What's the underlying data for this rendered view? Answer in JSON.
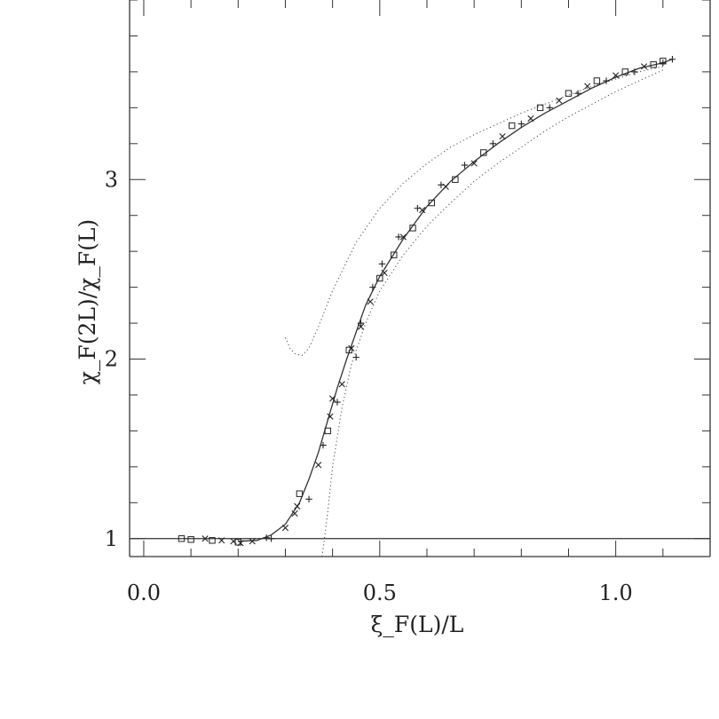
{
  "chart_data": {
    "type": "scatter",
    "title": "",
    "xlabel": "ξ_F(L)/L",
    "ylabel": "χ_F(2L)/χ_F(L)",
    "xlim": [
      -0.03,
      1.2
    ],
    "ylim": [
      0.9,
      4.0
    ],
    "x_ticks": [
      {
        "value": 0.0,
        "label": "0.0"
      },
      {
        "value": 0.5,
        "label": "0.5"
      },
      {
        "value": 1.0,
        "label": "1.0"
      }
    ],
    "y_ticks": [
      {
        "value": 1,
        "label": "1"
      },
      {
        "value": 2,
        "label": "2"
      },
      {
        "value": 3,
        "label": "3"
      }
    ],
    "x_minor_step": 0.1,
    "y_minor_step": 0.2,
    "reference_line": {
      "y": 1.0
    },
    "series": [
      {
        "marker": "square",
        "points": [
          [
            0.08,
            1.0
          ],
          [
            0.1,
            0.995
          ],
          [
            0.145,
            0.99
          ],
          [
            0.2,
            0.98
          ],
          [
            0.33,
            1.25
          ],
          [
            0.39,
            1.6
          ],
          [
            0.435,
            2.05
          ],
          [
            0.5,
            2.45
          ],
          [
            0.53,
            2.58
          ],
          [
            0.57,
            2.73
          ],
          [
            0.61,
            2.87
          ],
          [
            0.66,
            3.0
          ],
          [
            0.72,
            3.15
          ],
          [
            0.78,
            3.3
          ],
          [
            0.84,
            3.4
          ],
          [
            0.9,
            3.48
          ],
          [
            0.96,
            3.55
          ],
          [
            1.02,
            3.6
          ],
          [
            1.08,
            3.64
          ],
          [
            1.1,
            3.66
          ]
        ]
      },
      {
        "marker": "cross",
        "points": [
          [
            0.13,
            1.0
          ],
          [
            0.165,
            0.99
          ],
          [
            0.19,
            0.985
          ],
          [
            0.205,
            0.975
          ],
          [
            0.23,
            0.985
          ],
          [
            0.3,
            1.06
          ],
          [
            0.32,
            1.14
          ],
          [
            0.325,
            1.18
          ],
          [
            0.37,
            1.41
          ],
          [
            0.395,
            1.68
          ],
          [
            0.4,
            1.78
          ],
          [
            0.42,
            1.86
          ],
          [
            0.44,
            2.06
          ],
          [
            0.46,
            2.18
          ],
          [
            0.48,
            2.32
          ],
          [
            0.51,
            2.48
          ],
          [
            0.55,
            2.68
          ],
          [
            0.59,
            2.83
          ],
          [
            0.64,
            2.96
          ],
          [
            0.7,
            3.09
          ],
          [
            0.76,
            3.24
          ],
          [
            0.82,
            3.34
          ],
          [
            0.88,
            3.44
          ],
          [
            0.94,
            3.52
          ],
          [
            1.0,
            3.58
          ],
          [
            1.06,
            3.63
          ]
        ]
      },
      {
        "marker": "plus",
        "points": [
          [
            0.26,
            1.005
          ],
          [
            0.27,
            1.0
          ],
          [
            0.35,
            1.22
          ],
          [
            0.38,
            1.52
          ],
          [
            0.41,
            1.76
          ],
          [
            0.45,
            2.01
          ],
          [
            0.46,
            2.2
          ],
          [
            0.485,
            2.4
          ],
          [
            0.505,
            2.53
          ],
          [
            0.54,
            2.68
          ],
          [
            0.58,
            2.84
          ],
          [
            0.63,
            2.97
          ],
          [
            0.68,
            3.08
          ],
          [
            0.74,
            3.2
          ],
          [
            0.8,
            3.31
          ],
          [
            0.86,
            3.4
          ],
          [
            0.92,
            3.48
          ],
          [
            0.98,
            3.55
          ],
          [
            1.04,
            3.6
          ],
          [
            1.1,
            3.65
          ],
          [
            1.12,
            3.67
          ]
        ]
      }
    ],
    "fit_curve": {
      "style": "solid",
      "points": [
        [
          0.2,
          0.985
        ],
        [
          0.24,
          0.99
        ],
        [
          0.27,
          1.02
        ],
        [
          0.3,
          1.08
        ],
        [
          0.33,
          1.2
        ],
        [
          0.35,
          1.33
        ],
        [
          0.37,
          1.48
        ],
        [
          0.39,
          1.66
        ],
        [
          0.41,
          1.84
        ],
        [
          0.43,
          2.0
        ],
        [
          0.45,
          2.15
        ],
        [
          0.47,
          2.3
        ],
        [
          0.5,
          2.46
        ],
        [
          0.55,
          2.67
        ],
        [
          0.6,
          2.85
        ],
        [
          0.65,
          2.99
        ],
        [
          0.7,
          3.1
        ],
        [
          0.75,
          3.2
        ],
        [
          0.8,
          3.29
        ],
        [
          0.85,
          3.37
        ],
        [
          0.9,
          3.44
        ],
        [
          0.95,
          3.51
        ],
        [
          1.0,
          3.57
        ],
        [
          1.05,
          3.62
        ],
        [
          1.1,
          3.65
        ],
        [
          1.12,
          3.67
        ]
      ]
    },
    "asymptotic_curves": [
      {
        "style": "dotted",
        "points": [
          [
            0.3,
            2.12
          ],
          [
            0.31,
            2.06
          ],
          [
            0.32,
            2.03
          ],
          [
            0.335,
            2.02
          ],
          [
            0.35,
            2.06
          ],
          [
            0.37,
            2.18
          ],
          [
            0.4,
            2.38
          ],
          [
            0.45,
            2.65
          ],
          [
            0.5,
            2.84
          ],
          [
            0.55,
            2.98
          ],
          [
            0.6,
            3.09
          ],
          [
            0.65,
            3.18
          ],
          [
            0.7,
            3.25
          ],
          [
            0.75,
            3.31
          ],
          [
            0.8,
            3.37
          ],
          [
            0.85,
            3.42
          ],
          [
            0.9,
            3.47
          ],
          [
            0.95,
            3.52
          ],
          [
            1.0,
            3.56
          ],
          [
            1.05,
            3.6
          ],
          [
            1.1,
            3.63
          ]
        ]
      },
      {
        "style": "dotted",
        "points": [
          [
            0.378,
            0.9
          ],
          [
            0.39,
            1.15
          ],
          [
            0.4,
            1.4
          ],
          [
            0.42,
            1.73
          ],
          [
            0.44,
            1.97
          ],
          [
            0.47,
            2.2
          ],
          [
            0.5,
            2.38
          ],
          [
            0.55,
            2.58
          ],
          [
            0.6,
            2.74
          ],
          [
            0.65,
            2.87
          ],
          [
            0.7,
            2.99
          ],
          [
            0.75,
            3.09
          ],
          [
            0.8,
            3.18
          ],
          [
            0.85,
            3.27
          ],
          [
            0.9,
            3.35
          ],
          [
            0.95,
            3.42
          ],
          [
            1.0,
            3.49
          ],
          [
            1.05,
            3.55
          ],
          [
            1.1,
            3.61
          ]
        ]
      }
    ]
  }
}
